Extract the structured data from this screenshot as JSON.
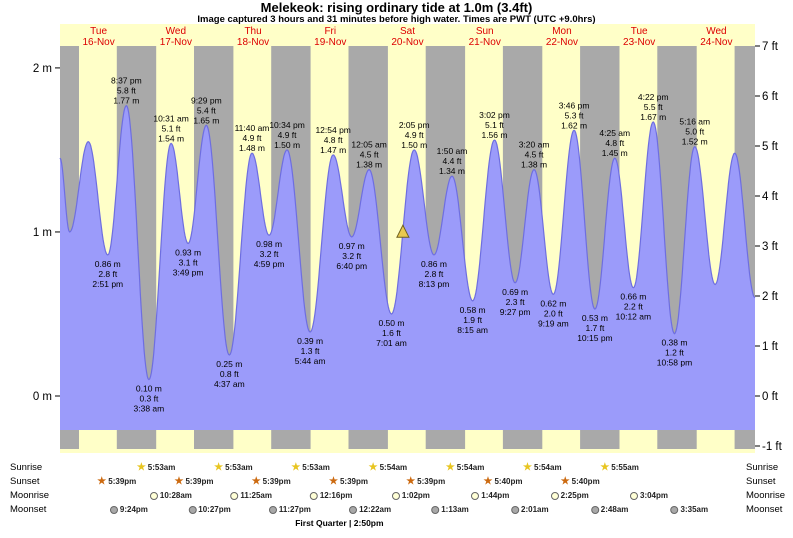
{
  "title": "Melekeok: rising  ordinary tide at 1.0m (3.4ft)",
  "subtitle": "Image captured 3 hours and 31 minutes before high water. Times are PWT (UTC +9.0hrs)",
  "colors": {
    "plot_bg": "#ffffc8",
    "night_band": "#a9a9a9",
    "area_fill": "#9b9bfa",
    "area_stroke": "#6e6ee0",
    "day_label": "#dd0000",
    "annotation": "#000000",
    "axis_text": "#000000",
    "marker_fill": "#e8c94f",
    "marker_stroke": "#6f5f1c",
    "sunrise_star": "#e8c520",
    "sunset_star": "#cc6a10",
    "moonrise_fill": "#ffffd6",
    "moonset_fill": "#a8a8a8"
  },
  "chart_data": {
    "type": "area",
    "title": "Melekeok: rising  ordinary tide at 1.0m (3.4ft)",
    "x_axis": {
      "start": "16-Nov 00:00",
      "end": "25-Nov 00:00",
      "hours_total": 216
    },
    "ylim_m": [
      -0.3048,
      2.1336
    ],
    "ylim_ft": [
      -1,
      7
    ],
    "grid": false,
    "days": [
      {
        "dow": "Tue",
        "date": "16-Nov"
      },
      {
        "dow": "Wed",
        "date": "17-Nov"
      },
      {
        "dow": "Thu",
        "date": "18-Nov"
      },
      {
        "dow": "Fri",
        "date": "19-Nov"
      },
      {
        "dow": "Sat",
        "date": "20-Nov"
      },
      {
        "dow": "Sun",
        "date": "21-Nov"
      },
      {
        "dow": "Mon",
        "date": "22-Nov"
      },
      {
        "dow": "Tue",
        "date": "23-Nov"
      },
      {
        "dow": "Wed",
        "date": "24-Nov"
      }
    ],
    "left_ticks": [
      {
        "label": "2 m",
        "m": 2
      },
      {
        "label": "1 m",
        "m": 1
      },
      {
        "label": "0 m",
        "m": 0
      }
    ],
    "right_ticks": [
      {
        "label": "7 ft",
        "ft": 7
      },
      {
        "label": "6 ft",
        "ft": 6
      },
      {
        "label": "5 ft",
        "ft": 5
      },
      {
        "label": "4 ft",
        "ft": 4
      },
      {
        "label": "3 ft",
        "ft": 3
      },
      {
        "label": "2 ft",
        "ft": 2
      },
      {
        "label": "1 ft",
        "ft": 1
      },
      {
        "label": "0 ft",
        "ft": 0
      },
      {
        "label": "-1 ft",
        "ft": -1
      }
    ],
    "tide_events": [
      {
        "t": 0.0,
        "m": 1.45,
        "kind": "edge",
        "label": []
      },
      {
        "t": 3.0,
        "m": 1.0,
        "kind": "low",
        "label": []
      },
      {
        "t": 8.8,
        "m": 1.55,
        "kind": "high",
        "label": []
      },
      {
        "t": 14.85,
        "m": 0.86,
        "kind": "low",
        "label": [
          "0.86 m",
          "2.8 ft",
          "2:51 pm"
        ]
      },
      {
        "t": 20.62,
        "m": 1.77,
        "kind": "high",
        "label": [
          "8:37 pm",
          "5.8 ft",
          "1.77 m"
        ]
      },
      {
        "t": 27.63,
        "m": 0.1,
        "kind": "low",
        "label": [
          "0.10 m",
          "0.3 ft",
          "3:38 am"
        ]
      },
      {
        "t": 34.52,
        "m": 1.54,
        "kind": "high",
        "label": [
          "10:31 am",
          "5.1 ft",
          "1.54 m"
        ]
      },
      {
        "t": 39.82,
        "m": 0.93,
        "kind": "low",
        "label": [
          "0.93 m",
          "3.1 ft",
          "3:49 pm"
        ]
      },
      {
        "t": 45.48,
        "m": 1.65,
        "kind": "high",
        "label": [
          "9:29 pm",
          "5.4 ft",
          "1.65 m"
        ]
      },
      {
        "t": 52.62,
        "m": 0.25,
        "kind": "low",
        "label": [
          "0.25 m",
          "0.8 ft",
          "4:37 am"
        ]
      },
      {
        "t": 59.67,
        "m": 1.48,
        "kind": "high",
        "label": [
          "11:40 am",
          "4.9 ft",
          "1.48 m"
        ]
      },
      {
        "t": 64.98,
        "m": 0.98,
        "kind": "low",
        "label": [
          "0.98 m",
          "3.2 ft",
          "4:59 pm"
        ]
      },
      {
        "t": 70.57,
        "m": 1.5,
        "kind": "high",
        "label": [
          "10:34 pm",
          "4.9 ft",
          "1.50 m"
        ]
      },
      {
        "t": 77.73,
        "m": 0.39,
        "kind": "low",
        "label": [
          "0.39 m",
          "1.3 ft",
          "5:44 am"
        ]
      },
      {
        "t": 84.9,
        "m": 1.47,
        "kind": "high",
        "label": [
          "12:54 pm",
          "4.8 ft",
          "1.47 m"
        ]
      },
      {
        "t": 90.67,
        "m": 0.97,
        "kind": "low",
        "label": [
          "0.97 m",
          "3.2 ft",
          "6:40 pm"
        ]
      },
      {
        "t": 96.08,
        "m": 1.38,
        "kind": "high",
        "label": [
          "12:05 am",
          "4.5 ft",
          "1.38 m"
        ]
      },
      {
        "t": 103.02,
        "m": 0.5,
        "kind": "low",
        "label": [
          "0.50 m",
          "1.6 ft",
          "7:01 am"
        ]
      },
      {
        "t": 110.08,
        "m": 1.5,
        "kind": "high",
        "label": [
          "2:05 pm",
          "4.9 ft",
          "1.50 m"
        ]
      },
      {
        "t": 116.22,
        "m": 0.86,
        "kind": "low",
        "label": [
          "0.86 m",
          "2.8 ft",
          "8:13 pm"
        ]
      },
      {
        "t": 121.83,
        "m": 1.34,
        "kind": "high",
        "label": [
          "1:50 am",
          "4.4 ft",
          "1.34 m"
        ]
      },
      {
        "t": 128.25,
        "m": 0.58,
        "kind": "low",
        "label": [
          "0.58 m",
          "1.9 ft",
          "8:15 am"
        ]
      },
      {
        "t": 135.03,
        "m": 1.56,
        "kind": "high",
        "label": [
          "3:02 pm",
          "5.1 ft",
          "1.56 m"
        ]
      },
      {
        "t": 141.45,
        "m": 0.69,
        "kind": "low",
        "label": [
          "0.69 m",
          "2.3 ft",
          "9:27 pm"
        ]
      },
      {
        "t": 147.33,
        "m": 1.38,
        "kind": "high",
        "label": [
          "3:20 am",
          "4.5 ft",
          "1.38 m"
        ]
      },
      {
        "t": 153.32,
        "m": 0.62,
        "kind": "low",
        "label": [
          "0.62 m",
          "2.0 ft",
          "9:19 am"
        ]
      },
      {
        "t": 159.77,
        "m": 1.62,
        "kind": "high",
        "label": [
          "3:46 pm",
          "5.3 ft",
          "1.62 m"
        ]
      },
      {
        "t": 166.25,
        "m": 0.53,
        "kind": "low",
        "label": [
          "0.53 m",
          "1.7 ft",
          "10:15 pm"
        ]
      },
      {
        "t": 172.42,
        "m": 1.45,
        "kind": "high",
        "label": [
          "4:25 am",
          "4.8 ft",
          "1.45 m"
        ]
      },
      {
        "t": 178.2,
        "m": 0.66,
        "kind": "low",
        "label": [
          "0.66 m",
          "2.2 ft",
          "10:12 am"
        ]
      },
      {
        "t": 184.37,
        "m": 1.67,
        "kind": "high",
        "label": [
          "4:22 pm",
          "5.5 ft",
          "1.67 m"
        ]
      },
      {
        "t": 190.97,
        "m": 0.38,
        "kind": "low",
        "label": [
          "0.38 m",
          "1.2 ft",
          "10:58 pm"
        ]
      },
      {
        "t": 197.27,
        "m": 1.52,
        "kind": "high",
        "label": [
          "5:16 am",
          "5.0 ft",
          "1.52 m"
        ]
      },
      {
        "t": 203.6,
        "m": 0.68,
        "kind": "low",
        "label": []
      },
      {
        "t": 209.7,
        "m": 1.48,
        "kind": "high",
        "label": []
      },
      {
        "t": 216.0,
        "m": 0.6,
        "kind": "edge",
        "label": []
      }
    ],
    "current_marker": {
      "t": 106.57
    },
    "night": {
      "sunset_h": 17.65,
      "sunrise_h": 5.9
    }
  },
  "astro": {
    "rows": [
      {
        "name": "Sunrise",
        "icon": "sunrise-star",
        "items": [
          {
            "t": 29.88,
            "time": "5:53am"
          },
          {
            "t": 53.88,
            "time": "5:53am"
          },
          {
            "t": 77.88,
            "time": "5:53am"
          },
          {
            "t": 101.9,
            "time": "5:54am"
          },
          {
            "t": 125.9,
            "time": "5:54am"
          },
          {
            "t": 149.9,
            "time": "5:54am"
          },
          {
            "t": 173.92,
            "time": "5:55am"
          }
        ]
      },
      {
        "name": "Sunset",
        "icon": "sunset-star",
        "items": [
          {
            "t": 17.65,
            "time": "5:39pm"
          },
          {
            "t": 41.65,
            "time": "5:39pm"
          },
          {
            "t": 65.65,
            "time": "5:39pm"
          },
          {
            "t": 89.65,
            "time": "5:39pm"
          },
          {
            "t": 113.65,
            "time": "5:39pm"
          },
          {
            "t": 137.67,
            "time": "5:40pm"
          },
          {
            "t": 161.67,
            "time": "5:40pm"
          }
        ]
      },
      {
        "name": "Moonrise",
        "icon": "moonrise-circle",
        "items": [
          {
            "t": 34.47,
            "time": "10:28am"
          },
          {
            "t": 59.42,
            "time": "11:25am"
          },
          {
            "t": 84.27,
            "time": "12:16pm"
          },
          {
            "t": 109.05,
            "time": "1:02pm"
          },
          {
            "t": 133.73,
            "time": "1:44pm"
          },
          {
            "t": 158.42,
            "time": "2:25pm"
          },
          {
            "t": 183.07,
            "time": "3:04pm"
          }
        ]
      },
      {
        "name": "Moonset",
        "icon": "moonset-circle",
        "items": [
          {
            "t": 21.4,
            "time": "9:24pm"
          },
          {
            "t": 46.45,
            "time": "10:27pm"
          },
          {
            "t": 71.45,
            "time": "11:27pm"
          },
          {
            "t": 96.37,
            "time": "12:22am"
          },
          {
            "t": 121.22,
            "time": "1:13am"
          },
          {
            "t": 146.02,
            "time": "2:01am"
          },
          {
            "t": 170.8,
            "time": "2:48am"
          },
          {
            "t": 195.58,
            "time": "3:35am"
          }
        ]
      }
    ],
    "moon_phase": {
      "t": 86.83,
      "label": "First Quarter | 2:50pm"
    }
  }
}
